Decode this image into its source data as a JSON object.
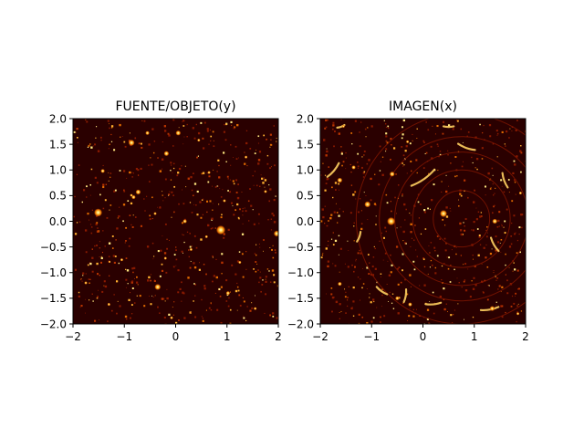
{
  "chart_data": [
    {
      "type": "heatmap",
      "title": "FUENTE/OBJETO(y)",
      "xlabel": "",
      "ylabel": "",
      "xlim": [
        -2,
        2
      ],
      "ylim": [
        -2,
        2
      ],
      "x_ticks": [
        "−2",
        "−1",
        "0",
        "1",
        "2"
      ],
      "y_ticks": [
        "2.0",
        "1.5",
        "1.0",
        "0.5",
        "0.0",
        "−0.5",
        "−1.0",
        "−1.5",
        "−2.0"
      ],
      "colormap": "afmhot",
      "background_color": "#2a0000",
      "sources": [
        {
          "x": -1.51,
          "y": 0.17,
          "r": 0.08
        },
        {
          "x": 0.88,
          "y": -0.17,
          "r": 0.09
        },
        {
          "x": -0.86,
          "y": 1.53,
          "r": 0.06
        },
        {
          "x": -0.35,
          "y": -1.28,
          "r": 0.06
        },
        {
          "x": 1.97,
          "y": -0.24,
          "r": 0.06
        },
        {
          "x": 0.05,
          "y": 1.72,
          "r": 0.05
        },
        {
          "x": -0.73,
          "y": 0.57,
          "r": 0.05
        },
        {
          "x": -1.42,
          "y": 0.98,
          "r": 0.04
        },
        {
          "x": 0.18,
          "y": 0.0,
          "r": 0.04
        },
        {
          "x": -0.18,
          "y": 1.32,
          "r": 0.05
        },
        {
          "x": -0.82,
          "y": 0.47,
          "r": 0.04
        },
        {
          "x": 1.02,
          "y": -1.4,
          "r": 0.04
        },
        {
          "x": -0.55,
          "y": 1.72,
          "r": 0.04
        },
        {
          "x": -0.4,
          "y": 0.15,
          "r": 0.03
        },
        {
          "x": 0.45,
          "y": 1.58,
          "r": 0.03
        },
        {
          "x": 1.37,
          "y": 1.25,
          "r": 0.03
        },
        {
          "x": 0.6,
          "y": -0.3,
          "r": 0.03
        },
        {
          "x": 1.25,
          "y": -0.8,
          "r": 0.03
        },
        {
          "x": -1.05,
          "y": -0.75,
          "r": 0.03
        },
        {
          "x": 0.3,
          "y": -0.55,
          "r": 0.03
        },
        {
          "x": -1.75,
          "y": -1.2,
          "r": 0.03
        },
        {
          "x": 1.75,
          "y": 0.58,
          "r": 0.03
        },
        {
          "x": -0.2,
          "y": -0.72,
          "r": 0.03
        },
        {
          "x": 0.65,
          "y": 0.95,
          "r": 0.03
        },
        {
          "x": -1.3,
          "y": -1.62,
          "r": 0.03
        },
        {
          "x": 1.55,
          "y": -1.7,
          "r": 0.03
        },
        {
          "x": 0.95,
          "y": 0.4,
          "r": 0.03
        },
        {
          "x": -0.08,
          "y": -1.88,
          "r": 0.03
        }
      ]
    },
    {
      "type": "heatmap",
      "title": "IMAGEN(x)",
      "xlabel": "",
      "ylabel": "",
      "xlim": [
        -2,
        2
      ],
      "ylim": [
        -2,
        2
      ],
      "x_ticks": [
        "−2",
        "−1",
        "0",
        "1",
        "2"
      ],
      "y_ticks": [
        "2.0",
        "1.5",
        "1.0",
        "0.5",
        "0.0",
        "−0.5",
        "−1.0",
        "−1.5",
        "−2.0"
      ],
      "colormap": "afmhot",
      "background_color": "#2a0000",
      "lens_center": {
        "x": 0.75,
        "y": 0.05
      },
      "ring_radii": [
        0.55,
        0.95,
        1.3,
        1.6,
        2.05
      ],
      "arcs": [
        {
          "x": 0.0,
          "y": 0.85,
          "angle": 35,
          "len": 0.55
        },
        {
          "x": -1.75,
          "y": 1.0,
          "angle": 50,
          "len": 0.35
        },
        {
          "x": 1.4,
          "y": -0.45,
          "angle": -60,
          "len": 0.3
        },
        {
          "x": 1.3,
          "y": -1.7,
          "angle": 10,
          "len": 0.35
        },
        {
          "x": -0.8,
          "y": -1.35,
          "angle": -35,
          "len": 0.25
        },
        {
          "x": 0.85,
          "y": 1.45,
          "angle": -20,
          "len": 0.35
        },
        {
          "x": -0.35,
          "y": -1.45,
          "angle": 80,
          "len": 0.25
        },
        {
          "x": 1.6,
          "y": 0.8,
          "angle": -70,
          "len": 0.3
        },
        {
          "x": 0.2,
          "y": -1.6,
          "angle": 5,
          "len": 0.3
        },
        {
          "x": -1.6,
          "y": 1.85,
          "angle": 20,
          "len": 0.15
        },
        {
          "x": -1.25,
          "y": -0.3,
          "angle": 70,
          "len": 0.2
        },
        {
          "x": 0.5,
          "y": 1.85,
          "angle": 0,
          "len": 0.2
        }
      ],
      "sources": [
        {
          "x": -0.62,
          "y": 0.0,
          "r": 0.08
        },
        {
          "x": -1.08,
          "y": 0.33,
          "r": 0.06
        },
        {
          "x": 0.4,
          "y": 0.15,
          "r": 0.07
        },
        {
          "x": 1.4,
          "y": 0.0,
          "r": 0.05
        },
        {
          "x": -0.6,
          "y": 0.92,
          "r": 0.05
        },
        {
          "x": -1.35,
          "y": 1.05,
          "r": 0.04
        },
        {
          "x": -1.62,
          "y": 0.8,
          "r": 0.05
        },
        {
          "x": -0.5,
          "y": -1.5,
          "r": 0.04
        },
        {
          "x": -0.25,
          "y": -1.62,
          "r": 0.04
        },
        {
          "x": 1.35,
          "y": -1.7,
          "r": 0.05
        },
        {
          "x": -1.62,
          "y": -1.22,
          "r": 0.04
        },
        {
          "x": -1.55,
          "y": 1.85,
          "r": 0.03
        },
        {
          "x": 1.85,
          "y": -1.8,
          "r": 0.03
        },
        {
          "x": -0.3,
          "y": 1.55,
          "r": 0.03
        },
        {
          "x": 1.9,
          "y": 0.55,
          "r": 0.03
        }
      ]
    }
  ]
}
